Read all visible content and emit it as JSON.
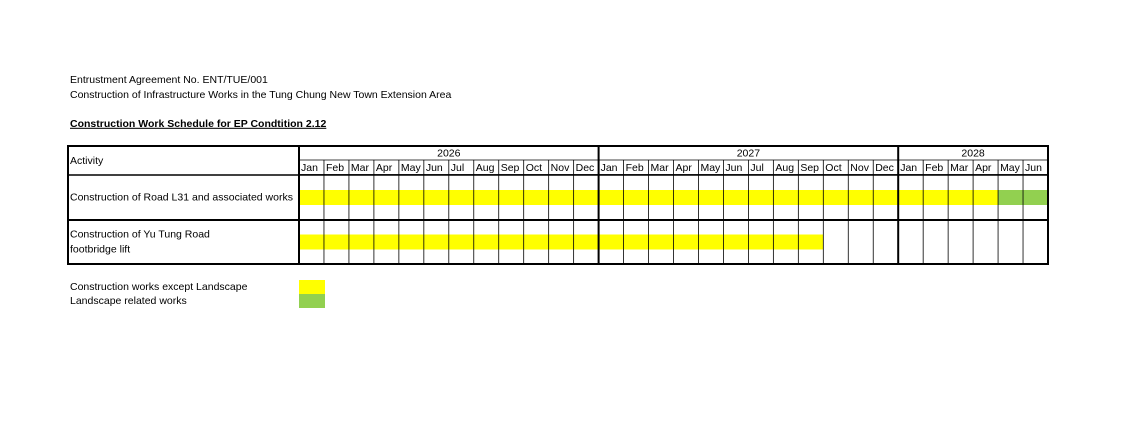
{
  "header": {
    "lines": [
      "Entrustment Agreement No. ENT/TUE/001",
      "Construction of Infrastructure Works in the Tung Chung New Town Extension Area"
    ],
    "title": "Construction Work Schedule for EP Condtition 2.12"
  },
  "table": {
    "activity_header": "Activity",
    "years": [
      {
        "label": "2026",
        "months": [
          "Jan",
          "Feb",
          "Mar",
          "Apr",
          "May",
          "Jun",
          "Jul",
          "Aug",
          "Sep",
          "Oct",
          "Nov",
          "Dec"
        ]
      },
      {
        "label": "2027",
        "months": [
          "Jan",
          "Feb",
          "Mar",
          "Apr",
          "May",
          "Jun",
          "Jul",
          "Aug",
          "Sep",
          "Oct",
          "Nov",
          "Dec"
        ]
      },
      {
        "label": "2028",
        "months": [
          "Jan",
          "Feb",
          "Mar",
          "Apr",
          "May",
          "Jun"
        ]
      }
    ],
    "rows": [
      {
        "activity": [
          "Construction of Road L31 and associated works"
        ],
        "bars": [
          {
            "start": "Jan 2026",
            "end": "Apr 2028",
            "color": "#ffff00"
          },
          {
            "start": "May 2028",
            "end": "Jun 2028",
            "color": "#92d050"
          }
        ]
      },
      {
        "activity": [
          "Construction of Yu Tung Road",
          "footbridge lift"
        ],
        "bars": [
          {
            "start": "Jan 2026",
            "end": "Sep 2027",
            "color": "#ffff00"
          }
        ]
      }
    ]
  },
  "legend": [
    {
      "label": "Construction works except Landscape",
      "color": "#ffff00"
    },
    {
      "label": "Landscape related works",
      "color": "#92d050"
    }
  ]
}
